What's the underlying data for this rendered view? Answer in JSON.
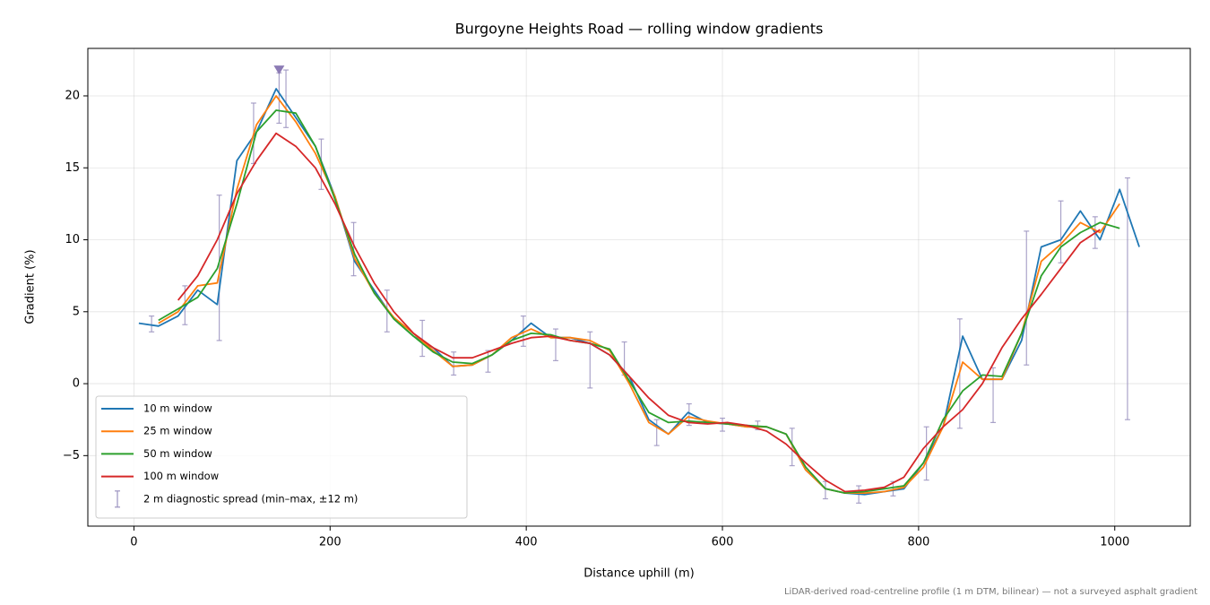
{
  "chart_data": {
    "type": "line",
    "title": "Burgoyne Heights Road — rolling window gradients",
    "xlabel": "Distance uphill (m)",
    "ylabel": "Gradient (%)",
    "footnote": "LiDAR-derived road-centreline profile (1 m DTM, bilinear) — not a surveyed asphalt gradient",
    "xlim": [
      -47,
      1077
    ],
    "ylim": [
      -9.9,
      23.3
    ],
    "xticks": [
      0,
      200,
      400,
      600,
      800,
      1000
    ],
    "yticks": [
      {
        "value": -5,
        "label": "−5"
      },
      0,
      5,
      10,
      15,
      20
    ],
    "grid": true,
    "legend": "lower left",
    "x": [
      5,
      25,
      45,
      65,
      85,
      105,
      125,
      145,
      165,
      185,
      205,
      225,
      245,
      265,
      285,
      305,
      325,
      345,
      365,
      385,
      405,
      425,
      445,
      465,
      485,
      505,
      525,
      545,
      565,
      585,
      605,
      625,
      645,
      665,
      685,
      705,
      725,
      745,
      765,
      785,
      805,
      825,
      845,
      865,
      885,
      905,
      925,
      945,
      965,
      985,
      1005,
      1025
    ],
    "series": [
      {
        "name": "10 m window",
        "color": "#1f77b4",
        "values": [
          4.2,
          4.0,
          4.7,
          6.5,
          5.5,
          15.5,
          17.5,
          20.5,
          18.5,
          16.5,
          13.0,
          8.5,
          6.5,
          4.5,
          3.3,
          2.5,
          1.2,
          1.3,
          2.0,
          3.0,
          4.2,
          3.2,
          3.2,
          2.8,
          2.0,
          0.5,
          -2.5,
          -3.5,
          -2.0,
          -2.7,
          -2.8,
          -3.0,
          -3.0,
          -3.5,
          -6.0,
          -7.3,
          -7.6,
          -7.7,
          -7.5,
          -7.3,
          -5.5,
          -3.0,
          3.3,
          0.3,
          0.3,
          3.0,
          9.5,
          10.0,
          12.0,
          10.0,
          13.5,
          9.5
        ]
      },
      {
        "name": "25 m window",
        "color": "#ff7f0e",
        "values": [
          null,
          4.2,
          5.0,
          6.8,
          7.0,
          13.5,
          18.0,
          20.0,
          18.2,
          16.0,
          13.0,
          8.7,
          6.3,
          4.6,
          3.5,
          2.3,
          1.2,
          1.3,
          2.0,
          3.2,
          3.8,
          3.2,
          3.2,
          3.0,
          2.3,
          0,
          -2.7,
          -3.5,
          -2.3,
          -2.6,
          -2.8,
          -3.0,
          -3.0,
          -3.5,
          -6.0,
          -7.3,
          -7.6,
          -7.6,
          -7.5,
          -7.2,
          -5.8,
          -3.0,
          1.5,
          0.3,
          0.3,
          3.5,
          8.5,
          9.7,
          11.2,
          10.5,
          12.5,
          null
        ]
      },
      {
        "name": "50 m window",
        "color": "#2ca02c",
        "values": [
          null,
          4.4,
          5.2,
          6.0,
          8.0,
          12.5,
          17.5,
          19.0,
          18.8,
          16.5,
          12.8,
          9.0,
          6.3,
          4.5,
          3.3,
          2.2,
          1.5,
          1.4,
          2.0,
          3.0,
          3.5,
          3.4,
          3.0,
          2.8,
          2.4,
          0.2,
          -2.0,
          -2.7,
          -2.6,
          -2.7,
          -2.8,
          -2.9,
          -3.0,
          -3.5,
          -5.8,
          -7.3,
          -7.6,
          -7.5,
          -7.3,
          -7.1,
          -5.5,
          -2.5,
          -0.5,
          0.6,
          0.5,
          3.5,
          7.5,
          9.5,
          10.5,
          11.2,
          10.8,
          null
        ]
      },
      {
        "name": "100 m window",
        "color": "#d62728",
        "values": [
          null,
          null,
          5.8,
          7.5,
          10.0,
          13.2,
          15.5,
          17.4,
          16.5,
          15.0,
          12.5,
          9.5,
          7.0,
          5.0,
          3.5,
          2.5,
          1.8,
          1.8,
          2.3,
          2.8,
          3.2,
          3.3,
          3.0,
          2.8,
          2.0,
          0.5,
          -1.0,
          -2.2,
          -2.7,
          -2.8,
          -2.7,
          -2.9,
          -3.3,
          -4.2,
          -5.5,
          -6.7,
          -7.5,
          -7.4,
          -7.2,
          -6.5,
          -4.5,
          -3.0,
          -1.8,
          0.0,
          2.5,
          4.5,
          6.2,
          8.0,
          9.8,
          10.7,
          null,
          null
        ]
      }
    ],
    "error_bars": {
      "name": "2 m diagnostic spread (min–max, ±12 m)",
      "color": "#9b93c0",
      "x": [
        18,
        52,
        87,
        122,
        148,
        155,
        191,
        224,
        258,
        294,
        326,
        361,
        397,
        430,
        465,
        500,
        533,
        566,
        600,
        636,
        671,
        705,
        739,
        774,
        808,
        842,
        876,
        910,
        945,
        980,
        1013
      ],
      "low": [
        3.6,
        4.1,
        3.0,
        15.3,
        18.1,
        17.8,
        13.5,
        7.5,
        3.6,
        1.9,
        0.6,
        0.8,
        2.6,
        1.6,
        -0.3,
        0.6,
        -4.3,
        -2.9,
        -3.3,
        -3.2,
        -5.7,
        -8.0,
        -8.3,
        -7.8,
        -6.7,
        -3.1,
        -2.7,
        1.3,
        8.4,
        9.4,
        -2.5
      ],
      "high": [
        4.7,
        6.8,
        13.1,
        19.5,
        21.6,
        21.8,
        17.0,
        11.2,
        6.5,
        4.4,
        2.2,
        2.3,
        4.7,
        3.8,
        3.6,
        2.9,
        -2.5,
        -1.4,
        -2.4,
        -2.6,
        -3.1,
        -6.8,
        -7.1,
        -6.8,
        -3.0,
        4.5,
        1.1,
        10.6,
        12.7,
        11.6,
        14.3
      ]
    },
    "peak_marker": {
      "x": 148,
      "y": 21.8,
      "color": "#8c7bb5"
    }
  }
}
